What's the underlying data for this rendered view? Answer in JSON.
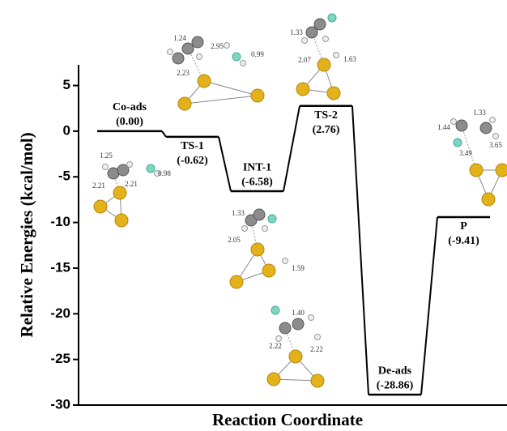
{
  "chart_data": {
    "type": "energy-profile",
    "ylabel": "Relative Energies (kcal/mol)",
    "xlabel": "Reaction Coordinate",
    "categories": [
      "Co-ads",
      "TS-1",
      "INT-1",
      "TS-2",
      "De-ads",
      "P"
    ],
    "values": [
      0.0,
      -0.62,
      -6.58,
      2.76,
      -28.86,
      -9.41
    ],
    "value_labels": [
      "(0.00)",
      "(-0.62)",
      "(-6.58)",
      "(2.76)",
      "(-28.86)",
      "(-9.41)"
    ],
    "color": "#000000",
    "ylim": [
      -30,
      7
    ],
    "yticks": [
      5,
      0,
      -5,
      -10,
      -15,
      -20,
      -25,
      -30
    ],
    "structures": [
      {
        "labels": [
          "1.24",
          "2.95",
          "0.99",
          "2.23"
        ]
      },
      {
        "labels": [
          "1.25",
          "2.21",
          "2.21",
          "0.98"
        ]
      },
      {
        "labels": [
          "1.33",
          "2.07",
          "1.63"
        ]
      },
      {
        "labels": [
          "1.33",
          "2.05",
          "1.59"
        ]
      },
      {
        "labels": [
          "1.40",
          "2.22",
          "2.22"
        ]
      },
      {
        "labels": [
          "1.44",
          "1.33",
          "3.49",
          "3.65"
        ]
      }
    ]
  }
}
